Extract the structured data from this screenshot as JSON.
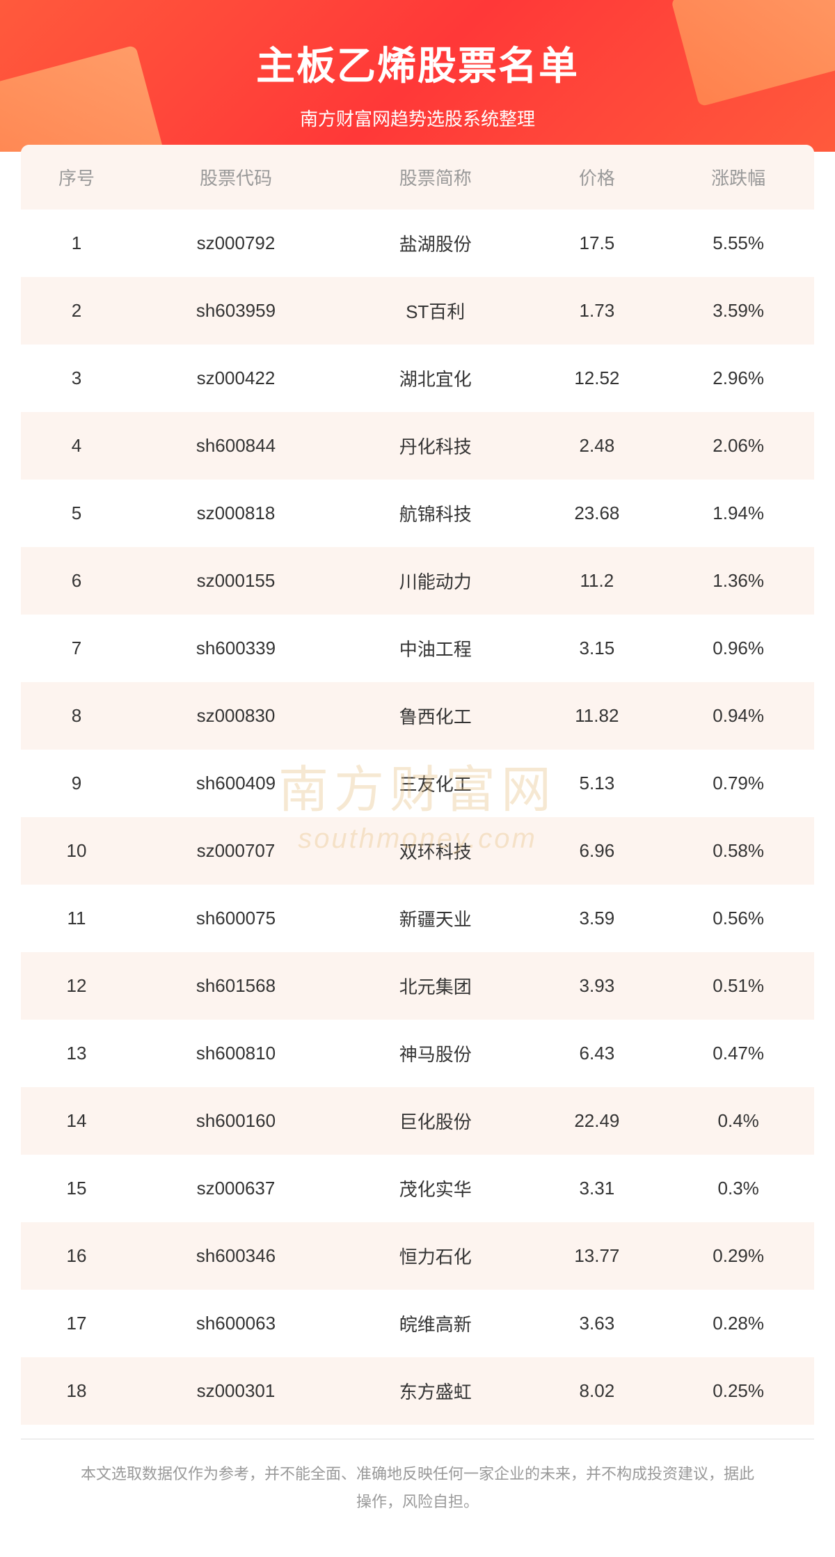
{
  "header": {
    "title": "主板乙烯股票名单",
    "subtitle": "南方财富网趋势选股系统整理"
  },
  "table": {
    "columns": [
      "序号",
      "股票代码",
      "股票简称",
      "价格",
      "涨跌幅"
    ],
    "rows": [
      {
        "seq": "1",
        "code": "sz000792",
        "name": "盐湖股份",
        "price": "17.5",
        "change": "5.55%"
      },
      {
        "seq": "2",
        "code": "sh603959",
        "name": "ST百利",
        "price": "1.73",
        "change": "3.59%"
      },
      {
        "seq": "3",
        "code": "sz000422",
        "name": "湖北宜化",
        "price": "12.52",
        "change": "2.96%"
      },
      {
        "seq": "4",
        "code": "sh600844",
        "name": "丹化科技",
        "price": "2.48",
        "change": "2.06%"
      },
      {
        "seq": "5",
        "code": "sz000818",
        "name": "航锦科技",
        "price": "23.68",
        "change": "1.94%"
      },
      {
        "seq": "6",
        "code": "sz000155",
        "name": "川能动力",
        "price": "11.2",
        "change": "1.36%"
      },
      {
        "seq": "7",
        "code": "sh600339",
        "name": "中油工程",
        "price": "3.15",
        "change": "0.96%"
      },
      {
        "seq": "8",
        "code": "sz000830",
        "name": "鲁西化工",
        "price": "11.82",
        "change": "0.94%"
      },
      {
        "seq": "9",
        "code": "sh600409",
        "name": "三友化工",
        "price": "5.13",
        "change": "0.79%"
      },
      {
        "seq": "10",
        "code": "sz000707",
        "name": "双环科技",
        "price": "6.96",
        "change": "0.58%"
      },
      {
        "seq": "11",
        "code": "sh600075",
        "name": "新疆天业",
        "price": "3.59",
        "change": "0.56%"
      },
      {
        "seq": "12",
        "code": "sh601568",
        "name": "北元集团",
        "price": "3.93",
        "change": "0.51%"
      },
      {
        "seq": "13",
        "code": "sh600810",
        "name": "神马股份",
        "price": "6.43",
        "change": "0.47%"
      },
      {
        "seq": "14",
        "code": "sh600160",
        "name": "巨化股份",
        "price": "22.49",
        "change": "0.4%"
      },
      {
        "seq": "15",
        "code": "sz000637",
        "name": "茂化实华",
        "price": "3.31",
        "change": "0.3%"
      },
      {
        "seq": "16",
        "code": "sh600346",
        "name": "恒力石化",
        "price": "13.77",
        "change": "0.29%"
      },
      {
        "seq": "17",
        "code": "sh600063",
        "name": "皖维高新",
        "price": "3.63",
        "change": "0.28%"
      },
      {
        "seq": "18",
        "code": "sz000301",
        "name": "东方盛虹",
        "price": "8.02",
        "change": "0.25%"
      }
    ]
  },
  "watermark": {
    "main": "南方财富网",
    "sub": "southmoney.com"
  },
  "footer": {
    "disclaimer": "本文选取数据仅作为参考，并不能全面、准确地反映任何一家企业的未来，并不构成投资建议，据此操作，风险自担。"
  },
  "styles": {
    "header_bg_start": "#ff5a3c",
    "header_bg_end": "#ff3838",
    "title_color": "#ffffff",
    "header_row_bg": "#fdf4ef",
    "even_row_bg": "#fdf4ef",
    "odd_row_bg": "#ffffff",
    "text_color": "#333333",
    "header_text_color": "#999999",
    "watermark_color": "#e8c080",
    "disclaimer_color": "#999999"
  }
}
